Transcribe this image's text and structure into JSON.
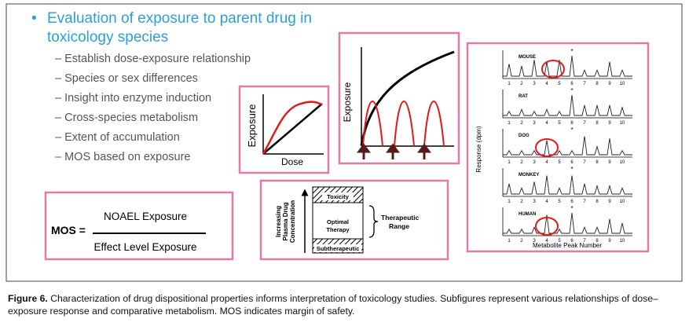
{
  "slide": {
    "title": "Evaluation of exposure to parent drug in toxicology species",
    "items": [
      "Establish dose-exposure relationship",
      "Species or sex differences",
      "Insight into enzyme induction",
      "Cross-species metabolism",
      "Extent of accumulation",
      "MOS based on exposure"
    ]
  },
  "mos": {
    "label": "MOS =",
    "numerator": "NOAEL Exposure",
    "denominator": "Effect Level Exposure"
  },
  "dose_plot": {
    "y_label": "Exposure",
    "x_label": "Dose"
  },
  "pk_plot": {
    "y_label": "Exposure"
  },
  "therapeutic": {
    "axis_label": [
      "Increasing",
      "Plasma Drug",
      "Concentration"
    ],
    "top_zone": "Toxicity",
    "middle_zone": [
      "Optimal",
      "Therapy"
    ],
    "bottom_zone": "Subtherapeutic",
    "range_label": [
      "Therapeutic",
      "Range"
    ]
  },
  "chromatograms": {
    "y_label": "Response (dpm)",
    "x_label": "Metabolite Peak Number",
    "marker": "*",
    "species": [
      "MOUSE",
      "RAT",
      "DOG",
      "MONKEY",
      "HUMAN"
    ],
    "peak_numbers": [
      "1",
      "2",
      "3",
      "4",
      "5",
      "6",
      "7",
      "8",
      "9",
      "10"
    ]
  },
  "caption": {
    "label": "Figure 6.",
    "text": "Characterization of drug dispositional properties informs interpretation of toxicology studies. Subfigures represent various relationships of dose–exposure response and comparative metabolism. MOS indicates margin of safety."
  }
}
